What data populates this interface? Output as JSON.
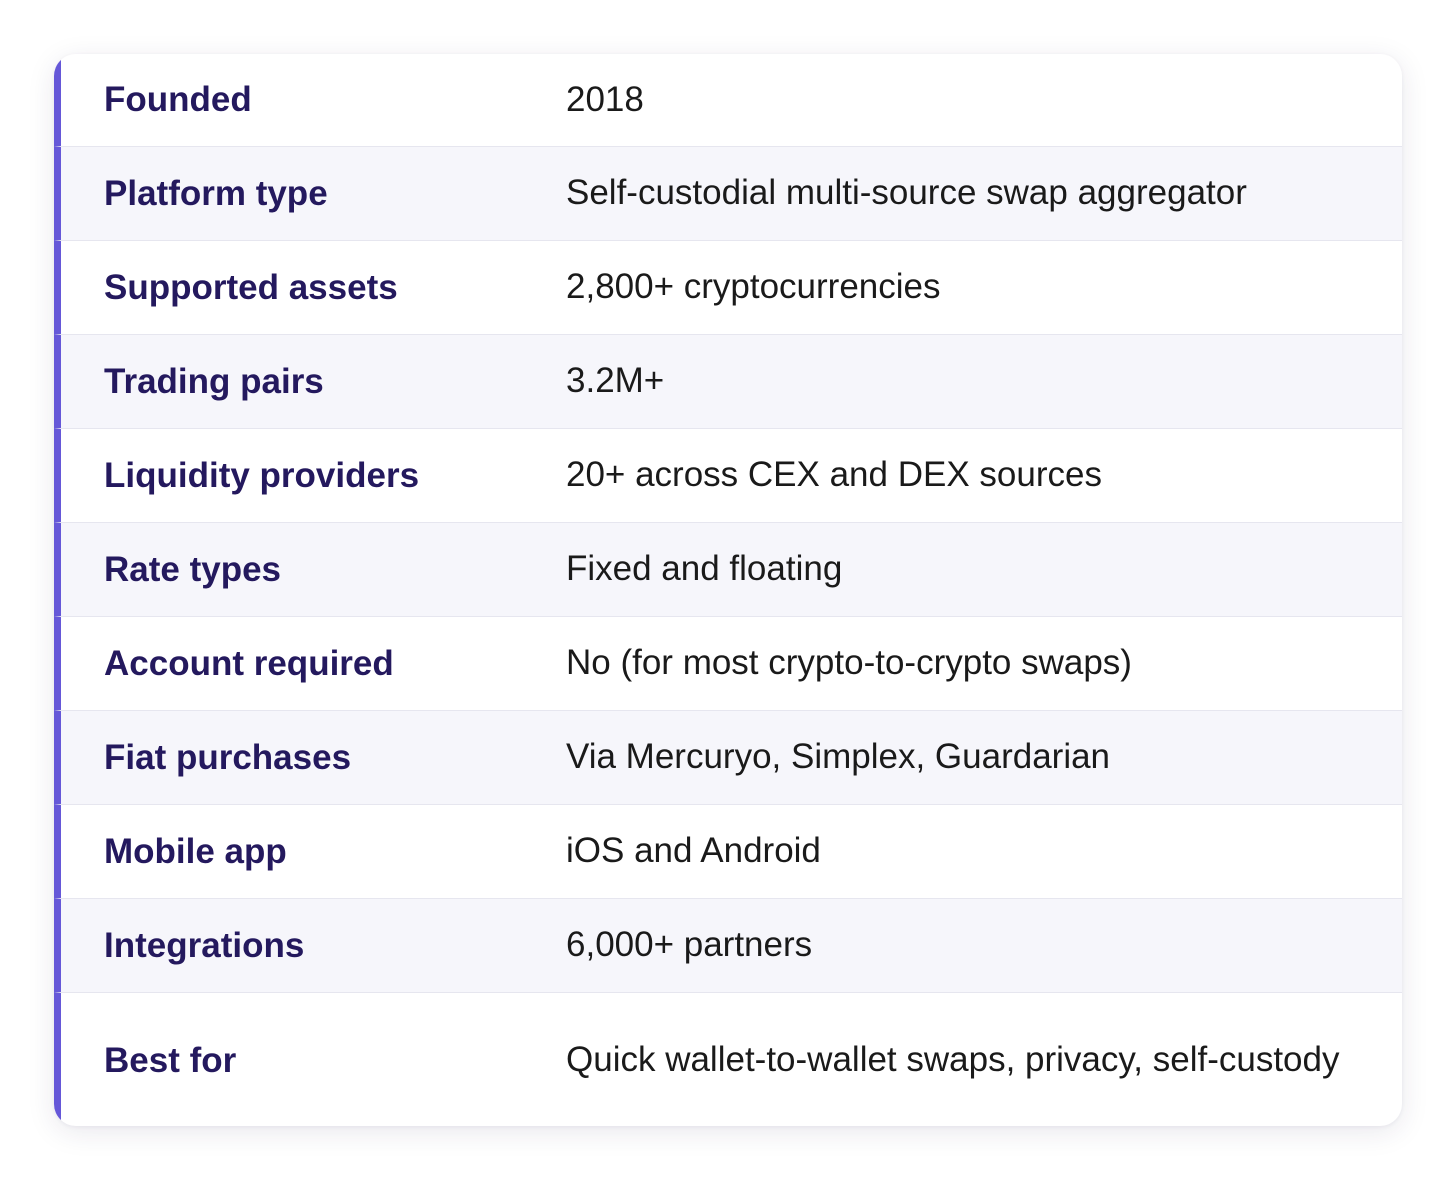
{
  "rows": [
    {
      "label": "Founded",
      "value": "2018"
    },
    {
      "label": "Platform type",
      "value": "Self-custodial multi-source swap aggregator"
    },
    {
      "label": "Supported assets",
      "value": "2,800+ cryptocurrencies"
    },
    {
      "label": "Trading pairs",
      "value": "3.2M+"
    },
    {
      "label": "Liquidity providers",
      "value": "20+ across CEX and DEX sources"
    },
    {
      "label": "Rate types",
      "value": "Fixed and floating"
    },
    {
      "label": "Account required",
      "value": "No (for most crypto-to-crypto swaps)"
    },
    {
      "label": "Fiat purchases",
      "value": "Via Mercuryo, Simplex, Guardarian"
    },
    {
      "label": "Mobile app",
      "value": "iOS and Android"
    },
    {
      "label": "Integrations",
      "value": "6,000+ partners"
    },
    {
      "label": "Best for",
      "value": "Quick wallet-to-wallet swaps, privacy, self-custody"
    }
  ],
  "colors": {
    "accent": "#6557d8",
    "label_text": "#24195e",
    "value_text": "#1a1a1a",
    "alt_row_bg": "#f6f6fb"
  }
}
